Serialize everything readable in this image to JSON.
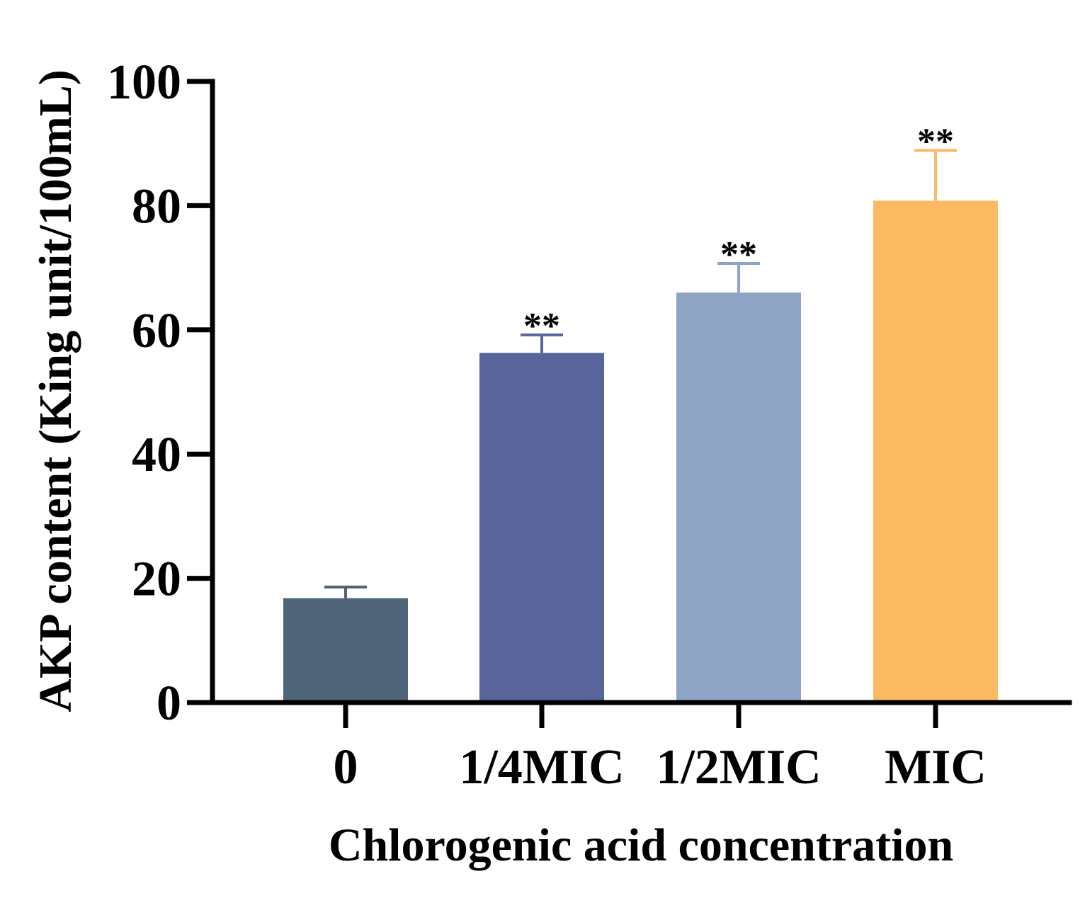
{
  "chart_data": {
    "type": "bar",
    "title": "",
    "xlabel": "Chlorogenic acid concentration",
    "ylabel": "AKP content (King unit/100mL)",
    "ylim": [
      0,
      100
    ],
    "yticks": [
      0,
      20,
      40,
      60,
      80,
      100
    ],
    "ytick_labels": [
      "0",
      "20",
      "40",
      "60",
      "80",
      "100"
    ],
    "categories": [
      "0",
      "1/4MIC",
      "1/2MIC",
      "MIC"
    ],
    "values": [
      16.8,
      56.3,
      66.0,
      80.8
    ],
    "errors": [
      1.8,
      2.9,
      4.7,
      8.1
    ],
    "significance": [
      "",
      "**",
      "**",
      "**"
    ],
    "bar_colors": [
      "#4f6478",
      "#5a649c",
      "#8fa3c4",
      "#fbb962"
    ],
    "grid": false,
    "legend": "none"
  }
}
